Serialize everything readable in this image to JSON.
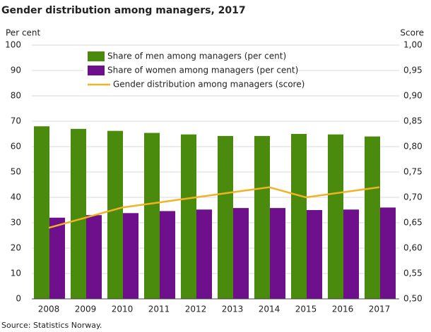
{
  "chart_data": {
    "type": "bar",
    "title": "Gender distribution among managers, 2017",
    "y_label": "Per cent",
    "y2_label": "Score",
    "source": "Source: Statistics Norway.",
    "categories": [
      "2008",
      "2009",
      "2010",
      "2011",
      "2012",
      "2013",
      "2014",
      "2015",
      "2016",
      "2017"
    ],
    "series": [
      {
        "name": "Share of men among managers (per cent)",
        "color": "#4a8a0c",
        "type": "bar",
        "values": [
          68,
          67,
          66.2,
          65.4,
          64.8,
          64.2,
          64.2,
          65,
          64.8,
          64
        ]
      },
      {
        "name": "Share of women among managers (per cent)",
        "color": "#6e0f8c",
        "type": "bar",
        "values": [
          32,
          33,
          33.8,
          34.6,
          35.2,
          35.8,
          35.8,
          35,
          35.2,
          36
        ]
      },
      {
        "name": "Gender distribution among managers (score)",
        "color": "#f0b323",
        "type": "line",
        "axis": "y2",
        "values": [
          0.64,
          0.66,
          0.68,
          0.69,
          0.7,
          0.71,
          0.72,
          0.7,
          0.71,
          0.72
        ]
      }
    ],
    "ylim": [
      0,
      100
    ],
    "yticks": [
      0,
      10,
      20,
      30,
      40,
      50,
      60,
      70,
      80,
      90,
      100
    ],
    "y2lim": [
      0.5,
      1.0
    ],
    "y2ticks": [
      {
        "value": 0.5,
        "label": "0,50"
      },
      {
        "value": 0.55,
        "label": "0,55"
      },
      {
        "value": 0.6,
        "label": "0,60"
      },
      {
        "value": 0.65,
        "label": "0,65"
      },
      {
        "value": 0.7,
        "label": "0,70"
      },
      {
        "value": 0.75,
        "label": "0,75"
      },
      {
        "value": 0.8,
        "label": "0,80"
      },
      {
        "value": 0.85,
        "label": "0,85"
      },
      {
        "value": 0.9,
        "label": "0,90"
      },
      {
        "value": 0.95,
        "label": "0,95"
      },
      {
        "value": 1.0,
        "label": "1,00"
      }
    ],
    "grid": true,
    "legend": "top"
  }
}
